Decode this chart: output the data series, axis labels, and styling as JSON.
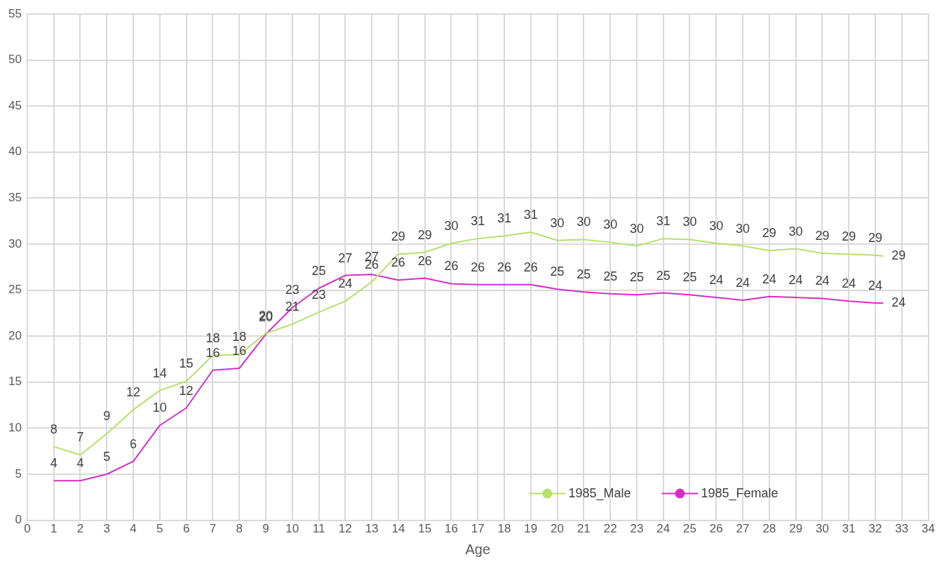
{
  "chart_data": {
    "type": "line",
    "xlabel": "Age",
    "x": [
      1,
      2,
      3,
      4,
      5,
      6,
      7,
      8,
      9,
      10,
      11,
      12,
      13,
      14,
      15,
      16,
      17,
      18,
      19,
      20,
      21,
      22,
      23,
      24,
      25,
      26,
      27,
      28,
      29,
      30,
      31,
      32,
      32.3
    ],
    "series": [
      {
        "name": "1985_Male",
        "color": "#b5e06a",
        "values": [
          8.0,
          7.1,
          9.4,
          12.0,
          14.1,
          15.1,
          17.9,
          18.0,
          20.3,
          21.3,
          22.6,
          23.8,
          25.9,
          28.9,
          29.1,
          30.1,
          30.6,
          30.9,
          31.3,
          30.4,
          30.5,
          30.2,
          29.8,
          30.6,
          30.5,
          30.1,
          29.8,
          29.3,
          29.5,
          29.0,
          28.9,
          28.8,
          28.7
        ],
        "value_labels": [
          "8",
          "7",
          "9",
          "12",
          "14",
          "15",
          "18",
          "18",
          "20",
          "21",
          "23",
          "24",
          "26",
          "29",
          "29",
          "30",
          "31",
          "31",
          "31",
          "30",
          "30",
          "30",
          "30",
          "31",
          "30",
          "30",
          "30",
          "29",
          "30",
          "29",
          "29",
          "29",
          "29"
        ]
      },
      {
        "name": "1985_Female",
        "color": "#d42fc4",
        "values": [
          4.3,
          4.3,
          5.0,
          6.4,
          10.3,
          12.2,
          16.3,
          16.5,
          20.2,
          23.1,
          25.2,
          26.6,
          26.7,
          26.1,
          26.3,
          25.7,
          25.6,
          25.6,
          25.6,
          25.1,
          24.8,
          24.6,
          24.5,
          24.7,
          24.5,
          24.2,
          23.9,
          24.3,
          24.2,
          24.1,
          23.8,
          23.6,
          23.6
        ],
        "value_labels": [
          "4",
          "4",
          "5",
          "6",
          "10",
          "12",
          "16",
          "16",
          "20",
          "23",
          "25",
          "27",
          "27",
          "26",
          "26",
          "26",
          "26",
          "26",
          "26",
          "25",
          "25",
          "25",
          "25",
          "25",
          "25",
          "24",
          "24",
          "24",
          "24",
          "24",
          "24",
          "24",
          "24"
        ]
      }
    ],
    "xlim": [
      0,
      34
    ],
    "xticks": [
      0,
      1,
      2,
      3,
      4,
      5,
      6,
      7,
      8,
      9,
      10,
      11,
      12,
      13,
      14,
      15,
      16,
      17,
      18,
      19,
      20,
      21,
      22,
      23,
      24,
      25,
      26,
      27,
      28,
      29,
      30,
      31,
      32,
      33,
      34
    ],
    "ylim": [
      0,
      55
    ],
    "yticks": [
      0,
      5,
      10,
      15,
      20,
      25,
      30,
      35,
      40,
      45,
      50,
      55
    ],
    "grid": true,
    "legend": "bottom right",
    "marker": "none",
    "line_style": "solid"
  }
}
